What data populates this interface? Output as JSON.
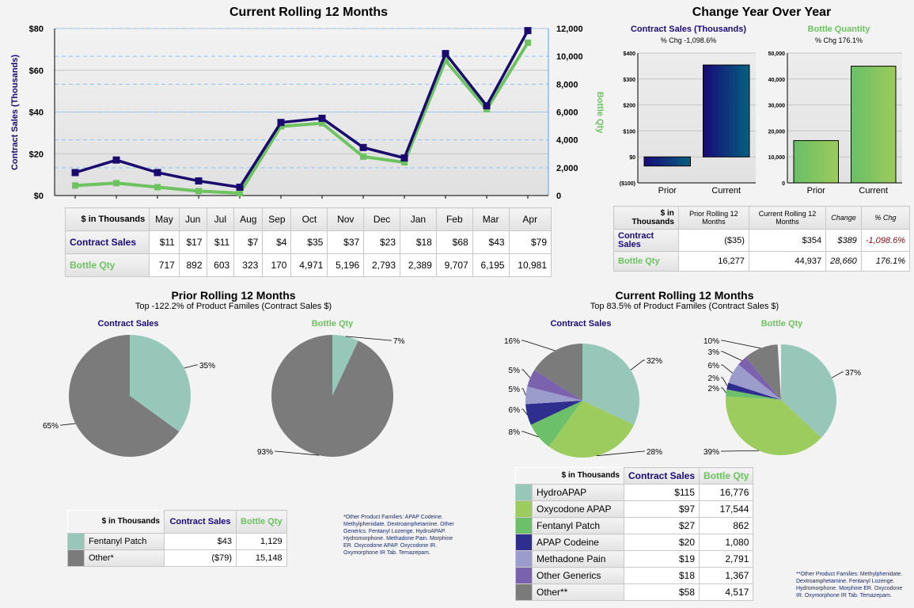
{
  "rolling": {
    "title": "Current Rolling 12 Months",
    "left_axis_label": "Contract Sales (Thousands)",
    "right_axis_label": "Bottle Qty",
    "left_ticks": [
      "$0",
      "$20",
      "$40",
      "$60",
      "$80"
    ],
    "right_ticks": [
      "0",
      "2,000",
      "4,000",
      "6,000",
      "8,000",
      "10,000",
      "12,000"
    ],
    "months": [
      "May",
      "Jun",
      "Jul",
      "Aug",
      "Sep",
      "Oct",
      "Nov",
      "Dec",
      "Jan",
      "Feb",
      "Mar",
      "Apr"
    ],
    "sales": [
      11,
      17,
      11,
      7,
      4,
      35,
      37,
      23,
      18,
      68,
      43,
      79
    ],
    "bottles": [
      717,
      892,
      603,
      323,
      170,
      4971,
      5196,
      2793,
      2389,
      9707,
      6195,
      10981
    ],
    "sales_display": [
      "$11",
      "$17",
      "$11",
      "$7",
      "$4",
      "$35",
      "$37",
      "$23",
      "$18",
      "$68",
      "$43",
      "$79"
    ],
    "bottles_display": [
      "717",
      "892",
      "603",
      "323",
      "170",
      "4,971",
      "5,196",
      "2,793",
      "2,389",
      "9,707",
      "6,195",
      "10,981"
    ],
    "corner": "$ in Thousands",
    "row_sales": "Contract Sales",
    "row_bottles": "Bottle Qty",
    "colors": {
      "sales": "#1a0a6e",
      "bottles": "#6cc35f"
    }
  },
  "yoy": {
    "title": "Change Year Over Year",
    "sales_title": "Contract Sales (Thousands)",
    "sales_chg": "% Chg -1,098.6%",
    "sales_ticks": [
      "($100)",
      "$0",
      "$100",
      "$200",
      "$300",
      "$400"
    ],
    "sales_values": [
      -35,
      354
    ],
    "bottle_title": "Bottle Quantity",
    "bottle_chg": "% Chg 176.1%",
    "bottle_ticks": [
      "0",
      "10,000",
      "20,000",
      "30,000",
      "40,000",
      "50,000"
    ],
    "bottle_values": [
      16277,
      44937
    ],
    "categories": [
      "Prior",
      "Current"
    ],
    "table": {
      "corner": "$ in Thousands",
      "headers": [
        "Prior Rolling 12 Months",
        "Current Rolling 12 Months",
        "Change",
        "% Chg"
      ],
      "rows": [
        {
          "label": "Contract Sales",
          "cells": [
            "($35)",
            "$354",
            "$389",
            "-1,098.6%"
          ]
        },
        {
          "label": "Bottle Qty",
          "cells": [
            "16,277",
            "44,937",
            "28,660",
            "176.1%"
          ]
        }
      ]
    }
  },
  "prior": {
    "title": "Prior Rolling 12 Months",
    "subtitle": "Top -122.2% of Product Familes (Contract Sales $)",
    "sales_label": "Contract Sales",
    "bottle_label": "Bottle Qty",
    "sales_pie": [
      {
        "name": "Fentanyl Patch",
        "pct": 35,
        "label": "35%"
      },
      {
        "name": "Other*",
        "pct": 65,
        "label": "65%"
      }
    ],
    "bottle_pie": [
      {
        "name": "Fentanyl Patch",
        "pct": 7,
        "label": "7%"
      },
      {
        "name": "Other*",
        "pct": 93,
        "label": "93%"
      }
    ],
    "table": {
      "corner": "$ in Thousands",
      "h_sales": "Contract Sales",
      "h_bottle": "Bottle Qty",
      "rows": [
        {
          "name": "Fentanyl Patch",
          "color": "#97c7b8",
          "sales": "$43",
          "bottle": "1,129"
        },
        {
          "name": "Other*",
          "color": "#7b7b7b",
          "sales": "($79)",
          "bottle": "15,148"
        }
      ]
    },
    "note": "*Other Product Families: APAP Codeine. Methylphenidate. Dextroamphetamine. Other Generics. Fentanyl Lozenge. HydroAPAP. Hydromorphone. Methadone Pain. Morphine ER. Oxycodone APAP. Oxycodone IR. Oxymorphone IR Tab. Temazepam."
  },
  "current": {
    "title": "Current Rolling 12 Months",
    "subtitle": "Top 83.5% of Product Familes (Contract Sales $)",
    "sales_label": "Contract Sales",
    "bottle_label": "Bottle Qty",
    "sales_pie": [
      32,
      28,
      8,
      6,
      5,
      5,
      16
    ],
    "sales_labels": [
      "32%",
      "28%",
      "8%",
      "6%",
      "5%",
      "5%",
      "16%"
    ],
    "bottle_pie": [
      37,
      39,
      2,
      2,
      6,
      3,
      10
    ],
    "bottle_labels": [
      "37%",
      "39%",
      "2%",
      "2%",
      "6%",
      "3%",
      "10%"
    ],
    "table": {
      "corner": "$ in Thousands",
      "h_sales": "Contract Sales",
      "h_bottle": "Bottle Qty",
      "rows": [
        {
          "name": "HydroAPAP",
          "color": "#97c7b8",
          "sales": "$115",
          "bottle": "16,776"
        },
        {
          "name": "Oxycodone APAP",
          "color": "#9ccc5e",
          "sales": "$97",
          "bottle": "17,544"
        },
        {
          "name": "Fentanyl Patch",
          "color": "#6cc06a",
          "sales": "$27",
          "bottle": "862"
        },
        {
          "name": "APAP Codeine",
          "color": "#2e2e8e",
          "sales": "$20",
          "bottle": "1,080"
        },
        {
          "name": "Methadone Pain",
          "color": "#9c9ccc",
          "sales": "$19",
          "bottle": "2,791"
        },
        {
          "name": "Other Generics",
          "color": "#7a62ae",
          "sales": "$18",
          "bottle": "1,367"
        },
        {
          "name": "Other**",
          "color": "#7b7b7b",
          "sales": "$58",
          "bottle": "4,517"
        }
      ]
    },
    "note": "**Other Product Families: Methylphenidate. Dextroamphetamine. Fentanyl Lozenge. Hydromorphone. Morphine ER. Oxycodone IR. Oxymorphone IR Tab. Temazepam."
  }
}
